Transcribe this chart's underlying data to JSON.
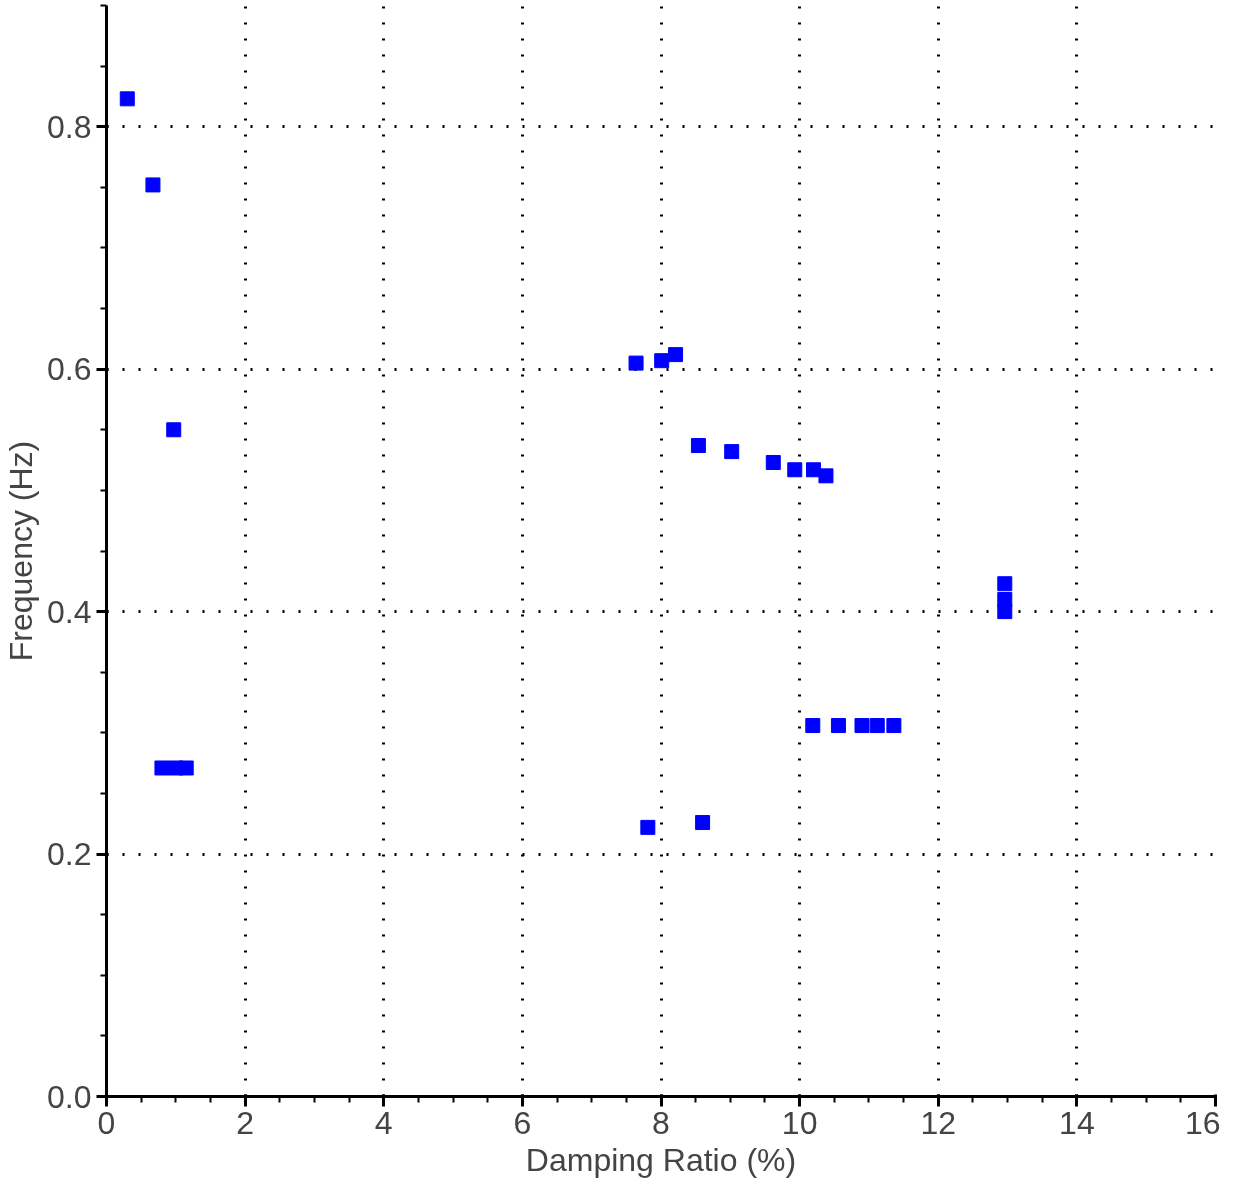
{
  "chart_data": {
    "type": "scatter",
    "xlabel": "Damping Ratio (%)",
    "ylabel": "Frequency (Hz)",
    "x": [
      0.3,
      0.67,
      0.97,
      0.8,
      1.0,
      1.15,
      7.64,
      8.01,
      8.21,
      8.54,
      9.02,
      9.62,
      9.93,
      10.2,
      10.38,
      12.96,
      12.96,
      12.96,
      7.81,
      8.6,
      10.19,
      10.56,
      10.9,
      11.12,
      11.36
    ],
    "values": [
      0.823,
      0.752,
      0.55,
      0.271,
      0.271,
      0.271,
      0.605,
      0.607,
      0.612,
      0.537,
      0.532,
      0.523,
      0.517,
      0.517,
      0.512,
      0.423,
      0.41,
      0.4,
      0.222,
      0.226,
      0.306,
      0.306,
      0.306,
      0.306,
      0.306
    ],
    "color": "#0000ff",
    "marker": "square",
    "grid": true,
    "xlim": [
      0,
      16
    ],
    "xticks": [
      0,
      2,
      4,
      6,
      8,
      10,
      12,
      14,
      16
    ],
    "ylim": [
      0,
      0.9
    ],
    "yticks": [
      {
        "value": 0,
        "label": "0.0"
      },
      {
        "value": 0.2,
        "label": "0.2"
      },
      {
        "value": 0.4,
        "label": "0.4"
      },
      {
        "value": 0.6,
        "label": "0.6"
      },
      {
        "value": 0.8,
        "label": "0.8"
      }
    ]
  }
}
